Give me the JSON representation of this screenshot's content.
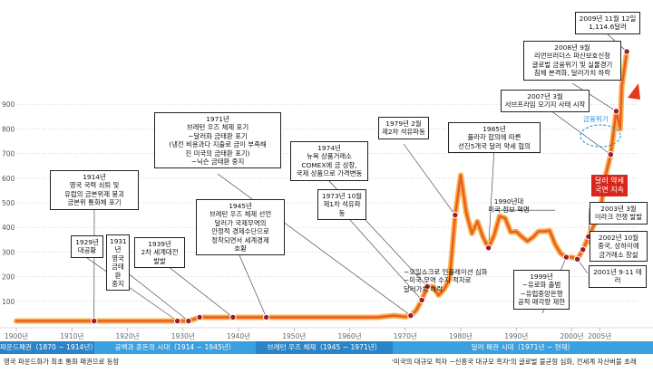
{
  "chart_data": {
    "type": "line",
    "x": [
      1900,
      1905,
      1910,
      1914,
      1918,
      1922,
      1926,
      1929,
      1931,
      1933,
      1934,
      1939,
      1945,
      1950,
      1955,
      1960,
      1965,
      1968,
      1970,
      1971,
      1972,
      1973,
      1974,
      1975,
      1976,
      1977,
      1978,
      1979,
      1980,
      1981,
      1982,
      1983,
      1984,
      1985,
      1986,
      1987,
      1988,
      1989,
      1990,
      1991,
      1992,
      1993,
      1994,
      1995,
      1996,
      1997,
      1998,
      1999,
      2000,
      2001,
      2002,
      2003,
      2004,
      2005,
      2006,
      2007,
      2008,
      2008.7,
      2009,
      2009.9
    ],
    "y": [
      20,
      20,
      20,
      20,
      20,
      20,
      20,
      20,
      20,
      35,
      35,
      35,
      35,
      35,
      35,
      35,
      35,
      42,
      37,
      42,
      64,
      105,
      160,
      160,
      125,
      148,
      190,
      450,
      612,
      460,
      375,
      424,
      361,
      317,
      368,
      446,
      437,
      381,
      383,
      362,
      344,
      360,
      384,
      384,
      387,
      331,
      294,
      279,
      279,
      271,
      310,
      363,
      410,
      445,
      604,
      696,
      872,
      800,
      972,
      1114
    ],
    "ylim": [
      0,
      1250
    ],
    "xlim": [
      1900,
      2012
    ],
    "x_ticks": [
      "1900년",
      "1910년",
      "1920년",
      "1930년",
      "1940년",
      "1950년",
      "1960년",
      "1970년",
      "1980년",
      "1990년",
      "2000년",
      "2005년"
    ],
    "y_ticks": [
      "900",
      "800",
      "700",
      "600",
      "500",
      "400",
      "300",
      "200",
      "100"
    ],
    "grid": true,
    "markers_x": [
      1914,
      1929,
      1931,
      1933,
      1939,
      1945,
      1971,
      1973,
      1974,
      1979,
      1985,
      1999,
      2001,
      2002,
      2003,
      2007,
      2008,
      2009.9
    ],
    "annotations": [
      {
        "id": "a1914",
        "text": "1914년\n영국 국력 쇠퇴 및\n유럽의 금본위제 붕괴\n금본위 통화체 포기"
      },
      {
        "id": "a1929",
        "text": "1929년\n대공황"
      },
      {
        "id": "a1931",
        "text": "1931년\n영국\n금태환\n중지"
      },
      {
        "id": "a1939",
        "text": "1939년\n2차 세계대전\n발발"
      },
      {
        "id": "a1945",
        "text": "1945년\n브레턴 우즈 체제 선언\n달러가 국제무역의\n안정적 경제수단으로\n정착되면서 세계경제\n호황"
      },
      {
        "id": "a1971",
        "text": "1971년\n브레턴 우즈 체제 포기\n~달러화 금태환 포기\n(냉전 비용과다 지출로 금이 부족해\n진 미국의 금태환 포기)\n~닉슨 금태환 중지"
      },
      {
        "id": "a1974",
        "text": "1974년\n뉴욕 상품거래소\nCOMEX에 금 상장,\n국제 상품으로 가격변동"
      },
      {
        "id": "a1973",
        "text": "1973년 10월\n제1차 석유파동"
      },
      {
        "id": "a1979",
        "text": "1979년 2월\n제2차 석유파동"
      },
      {
        "id": "a1985",
        "text": "1985년\n플라자 합의에 따른\n선진5개국 달러 약세 협의"
      },
      {
        "id": "a1990",
        "text": "1990년대\n미국 정보 혁명"
      },
      {
        "id": "a_inflation",
        "text": "~오일쇼크로 인플레이션 심화\n~미국 무역 수지 적자로\n달러가치 하락"
      },
      {
        "id": "a1999",
        "text": "1999년\n~유로화 출범\n~유럽중앙은행\n공적 매각량 제한"
      },
      {
        "id": "a2001",
        "text": "2001년 9·11 테러"
      },
      {
        "id": "a2002",
        "text": "2002년 10월\n중국, 상하이에\n금거래소 창설"
      },
      {
        "id": "a2003",
        "text": "2003년 3월\n이라크 전쟁 발발"
      },
      {
        "id": "a2007",
        "text": "2007년 3월\n서브프라임 모기지 사태 시작"
      },
      {
        "id": "a2008",
        "text": "2008년 9월\n리먼브러더스 파산보호신청\n글로벌 금융위기 및 실물경기\n침체 본격화, 달러가치 하락"
      },
      {
        "id": "a2009",
        "text": "2009년 11월 12일\n1,114.6달러"
      },
      {
        "id": "a_dollar",
        "text": "달러 약세\n국면 지속"
      },
      {
        "id": "a_crisis",
        "text": "금융위기"
      }
    ],
    "eras": [
      {
        "id": "era1",
        "label": "파운드패권（1870 ~ 1914년）",
        "color": "#2a85c8"
      },
      {
        "id": "era2",
        "label": "공백과 혼돈의 시대（1914 ~ 1945년）",
        "color": "#3aa0df"
      },
      {
        "id": "era3",
        "label": "브레턴 우즈 체제（1945 ~ 1971년）",
        "color": "#2a85c8"
      },
      {
        "id": "era4",
        "label": "달러 패권 시대（1971년 ~ 현재）",
        "color": "#3aa0df"
      }
    ],
    "footnotes": [
      {
        "id": "f1",
        "text": "영국 파운드화가 최초 통화 패권으로 등장"
      },
      {
        "id": "f2",
        "text": "'미국의 대규모 적자 ~신흥국 대규모 흑자'의 글로벌 불균형 심화, 전세계 자산버블 초래"
      }
    ]
  }
}
